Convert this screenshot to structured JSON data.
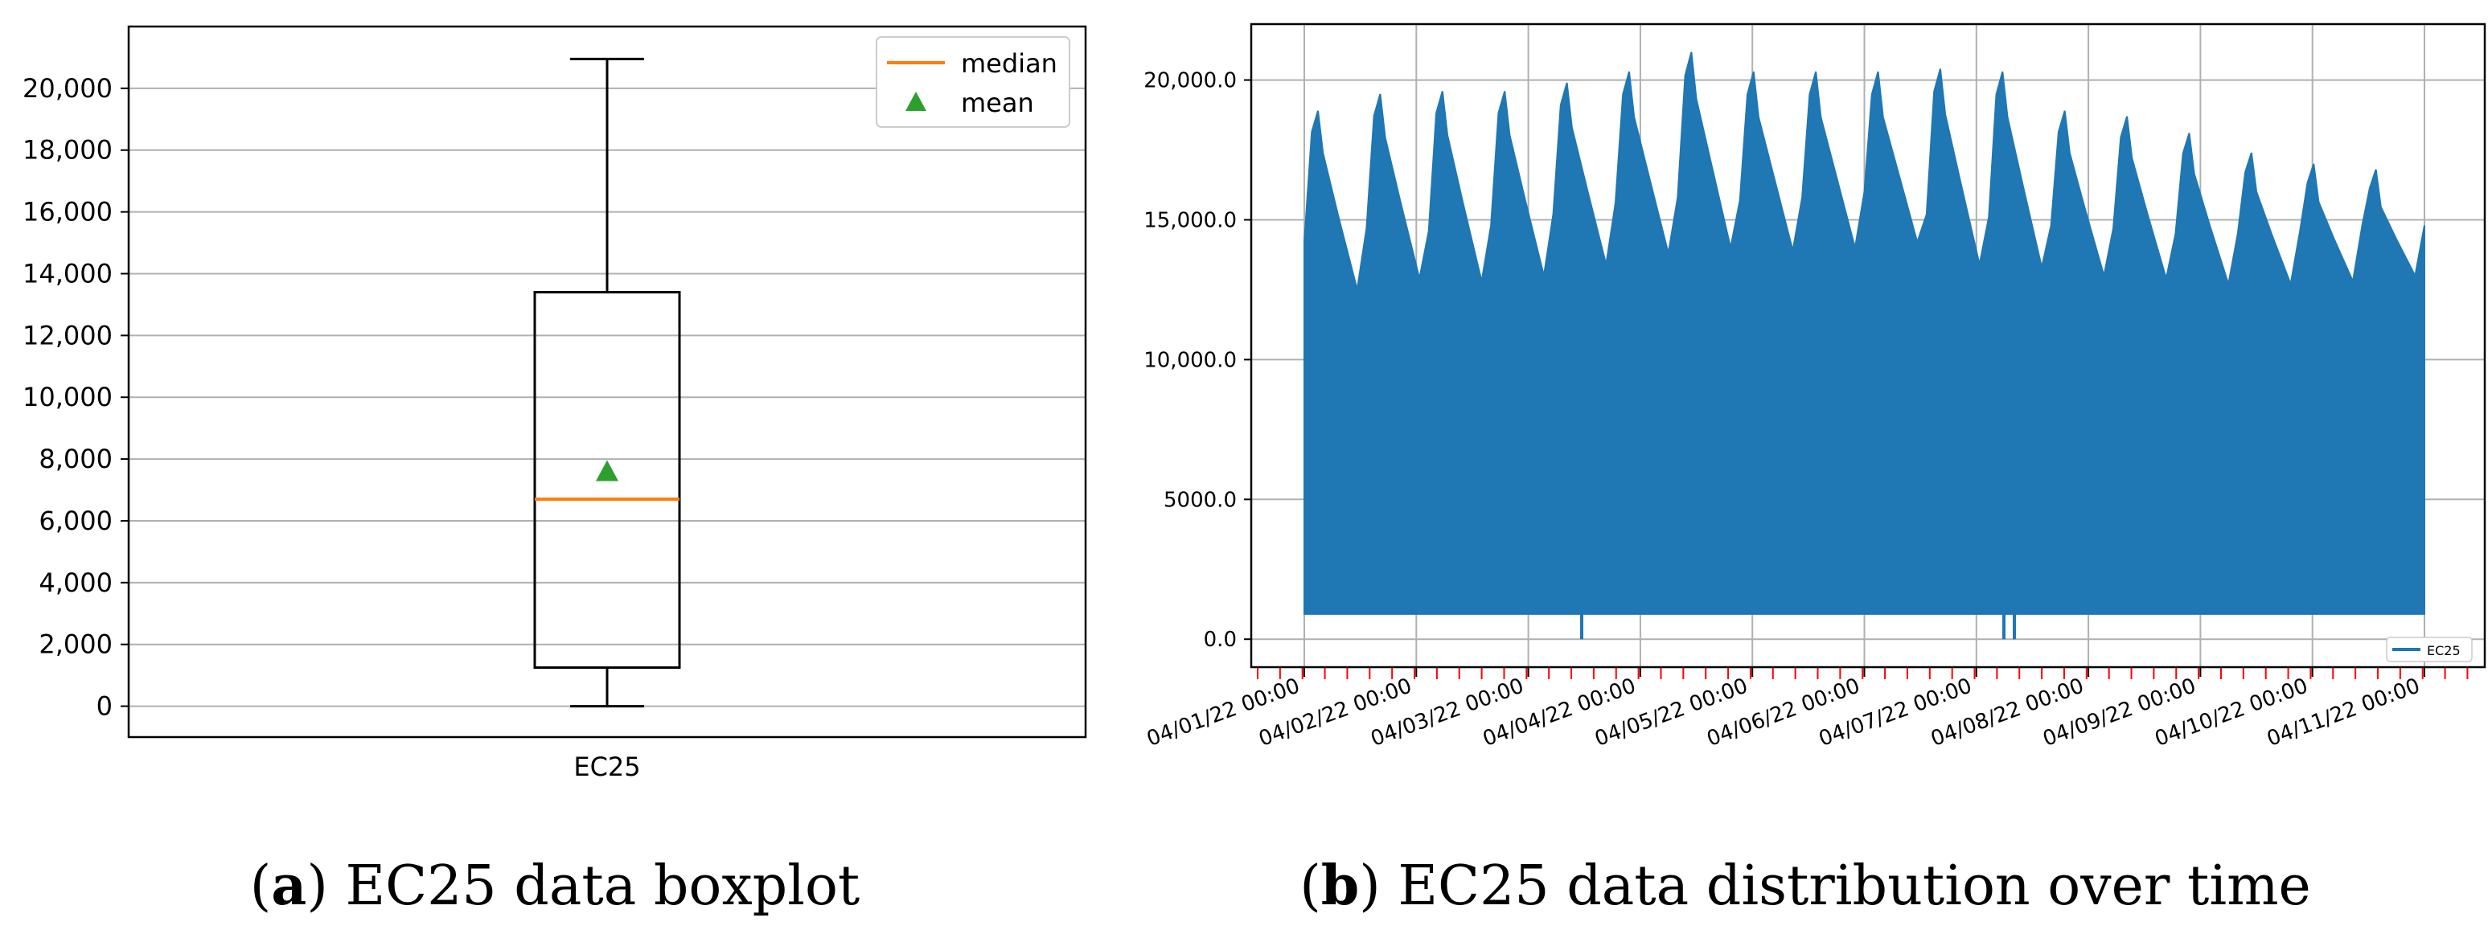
{
  "colors": {
    "box": "#000000",
    "median": "#ff7f0e",
    "mean": "#2ca02c",
    "series": "#1f77b4",
    "grid": "#b0b0b0",
    "minor_tick": "#ff0000"
  },
  "chart_data": [
    {
      "type": "box",
      "title": "",
      "category": "EC25",
      "stats": {
        "min": 0,
        "q1": 1250,
        "median": 6700,
        "q3": 13400,
        "max": 20950,
        "mean": 7600
      },
      "ylim": [
        -1000,
        22000
      ],
      "yticks": [
        0,
        2000,
        4000,
        6000,
        8000,
        10000,
        12000,
        14000,
        16000,
        18000,
        20000
      ],
      "ytick_labels": [
        "0",
        "2,000",
        "4,000",
        "6,000",
        "8,000",
        "10,000",
        "12,000",
        "14,000",
        "16,000",
        "18,000",
        "20,000"
      ],
      "legend": [
        "median",
        "mean"
      ],
      "legend_position": "top-right",
      "grid": "horizontal"
    },
    {
      "type": "area",
      "title": "",
      "series": [
        {
          "name": "EC25",
          "daily_peaks": [
            18900,
            19500,
            19600,
            19600,
            19900,
            20300,
            21000,
            20300,
            20300,
            20300,
            20400,
            20300,
            18900,
            18700,
            18100,
            17400,
            17000,
            16800
          ],
          "daily_troughs": [
            12500,
            12900,
            12800,
            13000,
            13400,
            13800,
            14000,
            13900,
            14000,
            14200,
            13400,
            13300,
            13000,
            12900,
            12700,
            12700,
            12800,
            13000
          ],
          "baseline": 900,
          "dropouts_to_zero": [
            "04/04/22",
            "04/07/22",
            "04/07/22"
          ]
        }
      ],
      "x_range": [
        "04/01/22 00:00",
        "04/11/22 00:00"
      ],
      "x_tick_labels": [
        "04/01/22 00:00",
        "04/02/22 00:00",
        "04/03/22 00:00",
        "04/04/22 00:00",
        "04/05/22 00:00",
        "04/06/22 00:00",
        "04/07/22 00:00",
        "04/08/22 00:00",
        "04/09/22 00:00",
        "04/10/22 00:00",
        "04/11/22 00:00"
      ],
      "ylim": [
        -1000,
        22000
      ],
      "yticks": [
        0,
        5000,
        10000,
        15000,
        20000
      ],
      "ytick_labels": [
        "0.0",
        "5000.0",
        "10,000.0",
        "15,000.0",
        "20,000.0"
      ],
      "legend": [
        "EC25"
      ],
      "legend_position": "bottom-right",
      "grid": "both"
    }
  ],
  "captions": {
    "a_label": "a",
    "a_text": "EC25 data boxplot",
    "b_label": "b",
    "b_text": "EC25 data distribution over time"
  }
}
